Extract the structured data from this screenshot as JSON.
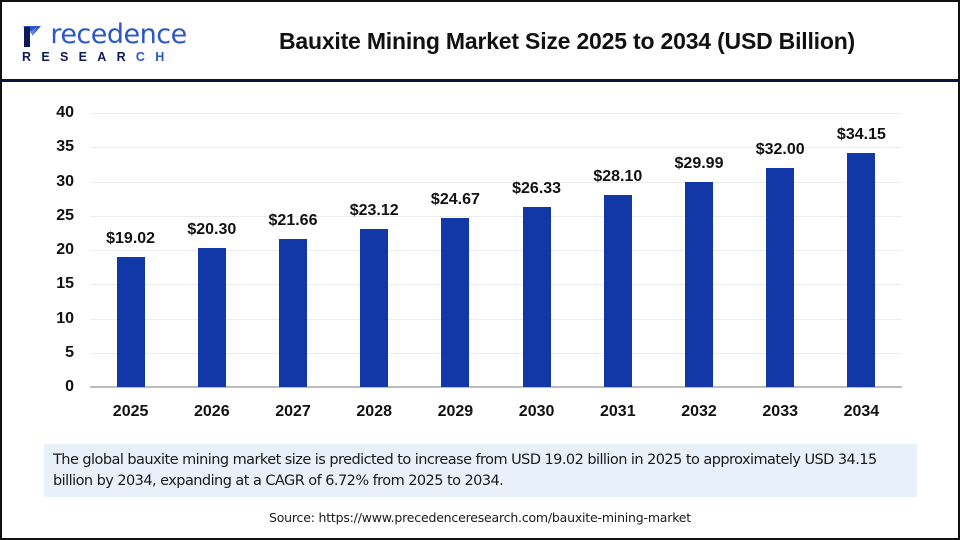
{
  "header": {
    "logo": {
      "word_first": "P",
      "word_rest": "recedence",
      "sub_main": "RESEAR",
      "sub_tail": "CH"
    },
    "title": "Bauxite Mining Market Size 2025 to 2034 (USD Billion)"
  },
  "colors": {
    "bar": "#1238a8",
    "frame": "#111111",
    "divider": "#0d1340",
    "description_bg": "#e8f0fa"
  },
  "chart_data": {
    "type": "bar",
    "title": "Bauxite Mining Market Size 2025 to 2034 (USD Billion)",
    "xlabel": "",
    "ylabel": "",
    "categories": [
      "2025",
      "2026",
      "2027",
      "2028",
      "2029",
      "2030",
      "2031",
      "2032",
      "2033",
      "2034"
    ],
    "values": [
      19.02,
      20.3,
      21.66,
      23.12,
      24.67,
      26.33,
      28.1,
      29.99,
      32.0,
      34.15
    ],
    "value_labels": [
      "$19.02",
      "$20.30",
      "$21.66",
      "$23.12",
      "$24.67",
      "$26.33",
      "$28.10",
      "$29.99",
      "$32.00",
      "$34.15"
    ],
    "ylim": [
      0,
      40
    ],
    "yticks": [
      "0",
      "5",
      "10",
      "15",
      "20",
      "25",
      "30",
      "35",
      "40"
    ],
    "grid": true,
    "legend": "none"
  },
  "description": "The global bauxite mining market size is predicted to increase from USD 19.02 billion in 2025 to approximately USD 34.15 billion by 2034, expanding at a CAGR of 6.72% from 2025 to 2034.",
  "source": "Source: https://www.precedenceresearch.com/bauxite-mining-market"
}
